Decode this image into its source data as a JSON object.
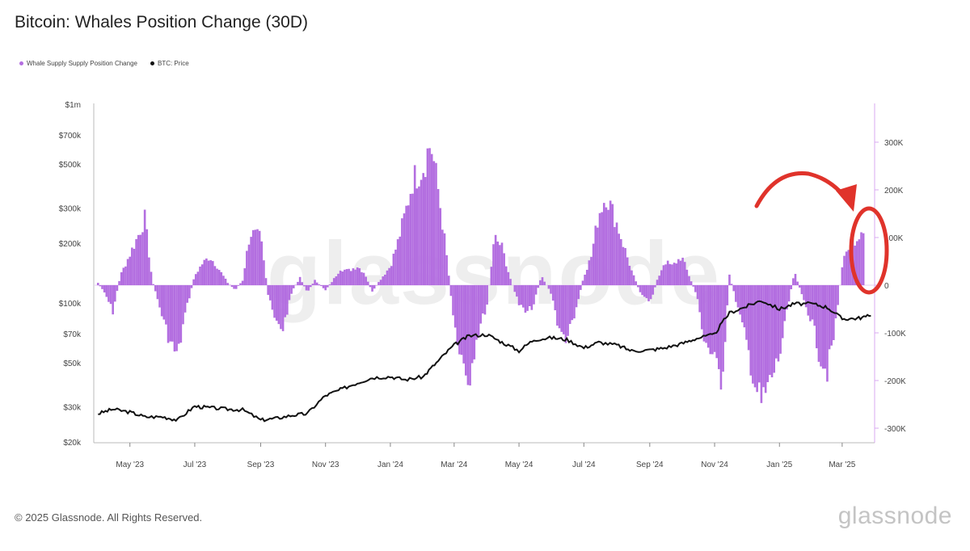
{
  "title": "Bitcoin: Whales Position Change (30D)",
  "legend": [
    {
      "label": "Whale Supply Supply Position Change",
      "color": "#b36ee0"
    },
    {
      "label": "BTC: Price",
      "color": "#111111"
    }
  ],
  "footer": "© 2025 Glassnode. All Rights Reserved.",
  "brand": "glassnode",
  "watermark": "glassnode",
  "colors": {
    "bars": "#b36ee0",
    "price": "#111111",
    "annotation": "#e0332b"
  },
  "chart_data": {
    "type": "bar",
    "x_axis": {
      "type": "date",
      "ticks": [
        "May '23",
        "Jul '23",
        "Sep '23",
        "Nov '23",
        "Jan '24",
        "Mar '24",
        "May '24",
        "Jul '24",
        "Sep '24",
        "Nov '24",
        "Jan '25",
        "Mar '25"
      ]
    },
    "left_axis": {
      "scale": "log",
      "ticks": [
        "$1m",
        "$700k",
        "$500k",
        "$300k",
        "$200k",
        "$100k",
        "$70k",
        "$50k",
        "$30k",
        "$20k"
      ]
    },
    "right_axis": {
      "scale": "linear",
      "ticks": [
        "300K",
        "200K",
        "100K",
        "0",
        "-100K",
        "-200K",
        "-300K"
      ],
      "ylim": [
        -300000,
        300000
      ]
    },
    "series": [
      {
        "name": "Whale Supply Supply Position Change",
        "axis": "right",
        "points": [
          [
            "2023-04-01",
            5000
          ],
          [
            "2023-04-08",
            -20000
          ],
          [
            "2023-04-15",
            -55000
          ],
          [
            "2023-04-22",
            20000
          ],
          [
            "2023-05-01",
            65000
          ],
          [
            "2023-05-08",
            100000
          ],
          [
            "2023-05-15",
            140000
          ],
          [
            "2023-05-22",
            10000
          ],
          [
            "2023-06-01",
            -70000
          ],
          [
            "2023-06-08",
            -120000
          ],
          [
            "2023-06-15",
            -150000
          ],
          [
            "2023-06-22",
            -60000
          ],
          [
            "2023-07-01",
            20000
          ],
          [
            "2023-07-08",
            45000
          ],
          [
            "2023-07-15",
            60000
          ],
          [
            "2023-07-22",
            40000
          ],
          [
            "2023-08-01",
            5000
          ],
          [
            "2023-08-08",
            -10000
          ],
          [
            "2023-08-15",
            10000
          ],
          [
            "2023-08-22",
            110000
          ],
          [
            "2023-09-01",
            100000
          ],
          [
            "2023-09-08",
            -20000
          ],
          [
            "2023-09-15",
            -80000
          ],
          [
            "2023-09-22",
            -90000
          ],
          [
            "2023-10-01",
            -10000
          ],
          [
            "2023-10-08",
            15000
          ],
          [
            "2023-10-15",
            -15000
          ],
          [
            "2023-10-22",
            10000
          ],
          [
            "2023-11-01",
            -10000
          ],
          [
            "2023-11-08",
            10000
          ],
          [
            "2023-11-15",
            35000
          ],
          [
            "2023-11-22",
            30000
          ],
          [
            "2023-12-01",
            40000
          ],
          [
            "2023-12-08",
            25000
          ],
          [
            "2023-12-15",
            -15000
          ],
          [
            "2023-12-22",
            10000
          ],
          [
            "2024-01-01",
            40000
          ],
          [
            "2024-01-08",
            90000
          ],
          [
            "2024-01-15",
            150000
          ],
          [
            "2024-01-22",
            220000
          ],
          [
            "2024-02-01",
            250000
          ],
          [
            "2024-02-08",
            300000
          ],
          [
            "2024-02-15",
            200000
          ],
          [
            "2024-02-22",
            80000
          ],
          [
            "2024-03-01",
            -80000
          ],
          [
            "2024-03-08",
            -150000
          ],
          [
            "2024-03-15",
            -200000
          ],
          [
            "2024-03-22",
            -110000
          ],
          [
            "2024-04-01",
            -40000
          ],
          [
            "2024-04-08",
            100000
          ],
          [
            "2024-04-15",
            80000
          ],
          [
            "2024-04-22",
            20000
          ],
          [
            "2024-05-01",
            -40000
          ],
          [
            "2024-05-08",
            -60000
          ],
          [
            "2024-05-15",
            -40000
          ],
          [
            "2024-05-22",
            20000
          ],
          [
            "2024-06-01",
            -20000
          ],
          [
            "2024-06-08",
            -100000
          ],
          [
            "2024-06-15",
            -110000
          ],
          [
            "2024-06-22",
            -70000
          ],
          [
            "2024-07-01",
            20000
          ],
          [
            "2024-07-08",
            60000
          ],
          [
            "2024-07-15",
            150000
          ],
          [
            "2024-07-22",
            190000
          ],
          [
            "2024-08-01",
            130000
          ],
          [
            "2024-08-08",
            80000
          ],
          [
            "2024-08-15",
            30000
          ],
          [
            "2024-08-22",
            -10000
          ],
          [
            "2024-09-01",
            -40000
          ],
          [
            "2024-09-08",
            10000
          ],
          [
            "2024-09-15",
            50000
          ],
          [
            "2024-09-22",
            40000
          ],
          [
            "2024-10-01",
            60000
          ],
          [
            "2024-10-08",
            20000
          ],
          [
            "2024-10-15",
            -20000
          ],
          [
            "2024-10-22",
            -110000
          ],
          [
            "2024-11-01",
            -160000
          ],
          [
            "2024-11-08",
            -200000
          ],
          [
            "2024-11-15",
            20000
          ],
          [
            "2024-11-22",
            -40000
          ],
          [
            "2024-12-01",
            -120000
          ],
          [
            "2024-12-08",
            -200000
          ],
          [
            "2024-12-15",
            -250000
          ],
          [
            "2024-12-22",
            -210000
          ],
          [
            "2025-01-01",
            -150000
          ],
          [
            "2025-01-08",
            -60000
          ],
          [
            "2025-01-15",
            30000
          ],
          [
            "2025-01-22",
            -20000
          ],
          [
            "2025-02-01",
            -80000
          ],
          [
            "2025-02-08",
            -150000
          ],
          [
            "2025-02-15",
            -180000
          ],
          [
            "2025-02-22",
            -100000
          ],
          [
            "2025-03-01",
            40000
          ],
          [
            "2025-03-08",
            90000
          ],
          [
            "2025-03-15",
            100000
          ],
          [
            "2025-03-22",
            130000
          ]
        ]
      },
      {
        "name": "BTC: Price",
        "axis": "left",
        "points": [
          [
            "2023-04-01",
            28000
          ],
          [
            "2023-04-15",
            29500
          ],
          [
            "2023-05-01",
            28500
          ],
          [
            "2023-05-15",
            27000
          ],
          [
            "2023-06-01",
            27000
          ],
          [
            "2023-06-15",
            26000
          ],
          [
            "2023-07-01",
            30500
          ],
          [
            "2023-07-15",
            30000
          ],
          [
            "2023-08-01",
            29500
          ],
          [
            "2023-08-15",
            29300
          ],
          [
            "2023-09-01",
            26000
          ],
          [
            "2023-09-15",
            26500
          ],
          [
            "2023-10-01",
            27500
          ],
          [
            "2023-10-15",
            28000
          ],
          [
            "2023-11-01",
            34500
          ],
          [
            "2023-11-15",
            37000
          ],
          [
            "2023-12-01",
            40000
          ],
          [
            "2023-12-15",
            42500
          ],
          [
            "2024-01-01",
            43000
          ],
          [
            "2024-01-15",
            41500
          ],
          [
            "2024-02-01",
            43000
          ],
          [
            "2024-02-15",
            51500
          ],
          [
            "2024-03-01",
            62000
          ],
          [
            "2024-03-15",
            69000
          ],
          [
            "2024-04-01",
            70000
          ],
          [
            "2024-04-15",
            64000
          ],
          [
            "2024-05-01",
            58000
          ],
          [
            "2024-05-15",
            66000
          ],
          [
            "2024-06-01",
            67500
          ],
          [
            "2024-06-15",
            66000
          ],
          [
            "2024-07-01",
            60000
          ],
          [
            "2024-07-15",
            64000
          ],
          [
            "2024-08-01",
            62000
          ],
          [
            "2024-08-15",
            58000
          ],
          [
            "2024-09-01",
            58500
          ],
          [
            "2024-09-15",
            60000
          ],
          [
            "2024-10-01",
            63000
          ],
          [
            "2024-10-15",
            67000
          ],
          [
            "2024-11-01",
            70000
          ],
          [
            "2024-11-15",
            90000
          ],
          [
            "2024-12-01",
            97000
          ],
          [
            "2024-12-15",
            104000
          ],
          [
            "2025-01-01",
            94000
          ],
          [
            "2025-01-15",
            100000
          ],
          [
            "2025-02-01",
            100000
          ],
          [
            "2025-02-15",
            96000
          ],
          [
            "2025-03-01",
            84000
          ],
          [
            "2025-03-15",
            84500
          ],
          [
            "2025-03-28",
            87000
          ]
        ]
      }
    ],
    "annotation": "red circle and arrow highlighting recent positive whale position change"
  }
}
